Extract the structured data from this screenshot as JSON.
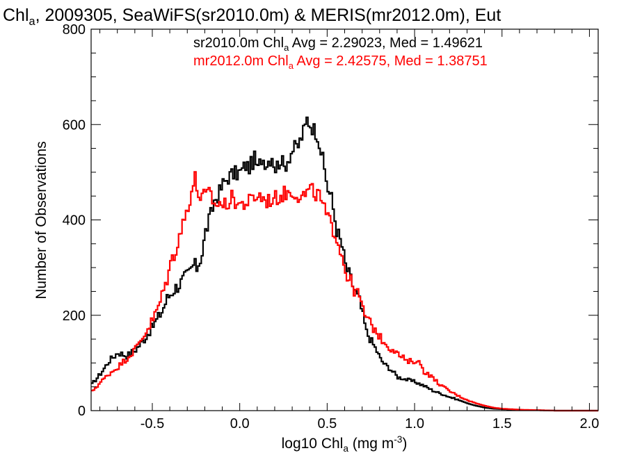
{
  "chart_data": {
    "type": "histogram",
    "title": {
      "prefix": "Chl",
      "sub": "a",
      "suffix": ", 2009305, SeaWiFS(sr2010.0m) & MERIS(mr2012.0m), Eut"
    },
    "xlabel": {
      "prefix": "log10 Chl",
      "sub": "a",
      "middle": " (mg m",
      "sup": "-3",
      "suffix": ")"
    },
    "ylabel": "Number of Observations",
    "xlim": [
      -0.85,
      2.05
    ],
    "ylim": [
      0,
      800
    ],
    "xticks": [
      "-0.5",
      "0.0",
      "0.5",
      "1.0",
      "1.5",
      "2.0"
    ],
    "yticks": [
      "0",
      "200",
      "400",
      "600",
      "800"
    ],
    "legend": [
      {
        "prefix": "sr2010.0m Chl",
        "sub": "a",
        "suffix": " Avg = 2.29023, Med = 1.49621",
        "color": "#000000"
      },
      {
        "prefix": "mr2012.0m Chl",
        "sub": "a",
        "suffix": " Avg = 2.42575, Med = 1.38751",
        "color": "#ff0000"
      }
    ],
    "bin_width": 0.01,
    "series": [
      {
        "color": "#000000",
        "points": [
          [
            -0.85,
            55
          ],
          [
            -0.8,
            78
          ],
          [
            -0.75,
            105
          ],
          [
            -0.7,
            122
          ],
          [
            -0.65,
            115
          ],
          [
            -0.6,
            128
          ],
          [
            -0.55,
            150
          ],
          [
            -0.5,
            178
          ],
          [
            -0.45,
            208
          ],
          [
            -0.42,
            235
          ],
          [
            -0.38,
            255
          ],
          [
            -0.35,
            265
          ],
          [
            -0.3,
            285
          ],
          [
            -0.27,
            305
          ],
          [
            -0.25,
            300
          ],
          [
            -0.22,
            330
          ],
          [
            -0.2,
            375
          ],
          [
            -0.17,
            410
          ],
          [
            -0.15,
            440
          ],
          [
            -0.12,
            458
          ],
          [
            -0.1,
            475
          ],
          [
            -0.07,
            490
          ],
          [
            -0.05,
            495
          ],
          [
            0.0,
            500
          ],
          [
            0.03,
            515
          ],
          [
            0.05,
            510
          ],
          [
            0.08,
            528
          ],
          [
            0.1,
            505
          ],
          [
            0.12,
            530
          ],
          [
            0.15,
            520
          ],
          [
            0.18,
            535
          ],
          [
            0.2,
            508
          ],
          [
            0.23,
            528
          ],
          [
            0.25,
            510
          ],
          [
            0.28,
            535
          ],
          [
            0.3,
            548
          ],
          [
            0.33,
            555
          ],
          [
            0.35,
            575
          ],
          [
            0.37,
            595
          ],
          [
            0.38,
            612
          ],
          [
            0.4,
            600
          ],
          [
            0.42,
            590
          ],
          [
            0.44,
            580
          ],
          [
            0.46,
            545
          ],
          [
            0.48,
            505
          ],
          [
            0.5,
            465
          ],
          [
            0.52,
            445
          ],
          [
            0.55,
            380
          ],
          [
            0.58,
            345
          ],
          [
            0.6,
            305
          ],
          [
            0.62,
            285
          ],
          [
            0.65,
            255
          ],
          [
            0.68,
            230
          ],
          [
            0.7,
            198
          ],
          [
            0.72,
            165
          ],
          [
            0.75,
            145
          ],
          [
            0.78,
            125
          ],
          [
            0.8,
            108
          ],
          [
            0.83,
            95
          ],
          [
            0.85,
            90
          ],
          [
            0.88,
            78
          ],
          [
            0.9,
            70
          ],
          [
            0.93,
            68
          ],
          [
            0.95,
            65
          ],
          [
            1.0,
            60
          ],
          [
            1.05,
            52
          ],
          [
            1.1,
            42
          ],
          [
            1.15,
            35
          ],
          [
            1.2,
            28
          ],
          [
            1.25,
            22
          ],
          [
            1.3,
            15
          ],
          [
            1.35,
            10
          ],
          [
            1.4,
            6
          ],
          [
            1.45,
            4
          ],
          [
            1.5,
            3
          ],
          [
            1.55,
            2
          ],
          [
            1.6,
            1
          ],
          [
            1.7,
            1
          ],
          [
            1.8,
            0
          ],
          [
            2.05,
            0
          ]
        ]
      },
      {
        "color": "#ff0000",
        "points": [
          [
            -0.85,
            40
          ],
          [
            -0.8,
            60
          ],
          [
            -0.75,
            78
          ],
          [
            -0.7,
            92
          ],
          [
            -0.65,
            110
          ],
          [
            -0.6,
            130
          ],
          [
            -0.55,
            160
          ],
          [
            -0.5,
            192
          ],
          [
            -0.47,
            218
          ],
          [
            -0.44,
            252
          ],
          [
            -0.42,
            278
          ],
          [
            -0.4,
            308
          ],
          [
            -0.37,
            340
          ],
          [
            -0.35,
            368
          ],
          [
            -0.32,
            402
          ],
          [
            -0.3,
            432
          ],
          [
            -0.28,
            460
          ],
          [
            -0.26,
            488
          ],
          [
            -0.25,
            465
          ],
          [
            -0.23,
            448
          ],
          [
            -0.2,
            450
          ],
          [
            -0.17,
            455
          ],
          [
            -0.15,
            430
          ],
          [
            -0.12,
            438
          ],
          [
            -0.1,
            428
          ],
          [
            -0.05,
            445
          ],
          [
            0.0,
            432
          ],
          [
            0.05,
            438
          ],
          [
            0.1,
            452
          ],
          [
            0.15,
            440
          ],
          [
            0.2,
            445
          ],
          [
            0.25,
            455
          ],
          [
            0.3,
            460
          ],
          [
            0.35,
            448
          ],
          [
            0.4,
            462
          ],
          [
            0.45,
            450
          ],
          [
            0.48,
            420
          ],
          [
            0.5,
            400
          ],
          [
            0.52,
            390
          ],
          [
            0.55,
            365
          ],
          [
            0.58,
            325
          ],
          [
            0.6,
            295
          ],
          [
            0.62,
            275
          ],
          [
            0.65,
            255
          ],
          [
            0.68,
            238
          ],
          [
            0.7,
            210
          ],
          [
            0.72,
            195
          ],
          [
            0.75,
            178
          ],
          [
            0.78,
            165
          ],
          [
            0.8,
            152
          ],
          [
            0.83,
            142
          ],
          [
            0.85,
            132
          ],
          [
            0.88,
            128
          ],
          [
            0.9,
            118
          ],
          [
            0.93,
            110
          ],
          [
            0.95,
            102
          ],
          [
            1.0,
            105
          ],
          [
            1.03,
            98
          ],
          [
            1.05,
            82
          ],
          [
            1.08,
            75
          ],
          [
            1.1,
            68
          ],
          [
            1.15,
            52
          ],
          [
            1.2,
            40
          ],
          [
            1.25,
            30
          ],
          [
            1.3,
            22
          ],
          [
            1.35,
            15
          ],
          [
            1.4,
            10
          ],
          [
            1.45,
            6
          ],
          [
            1.5,
            4
          ],
          [
            1.55,
            3
          ],
          [
            1.6,
            2
          ],
          [
            1.7,
            1
          ],
          [
            1.8,
            0
          ],
          [
            2.05,
            0
          ]
        ]
      }
    ]
  }
}
